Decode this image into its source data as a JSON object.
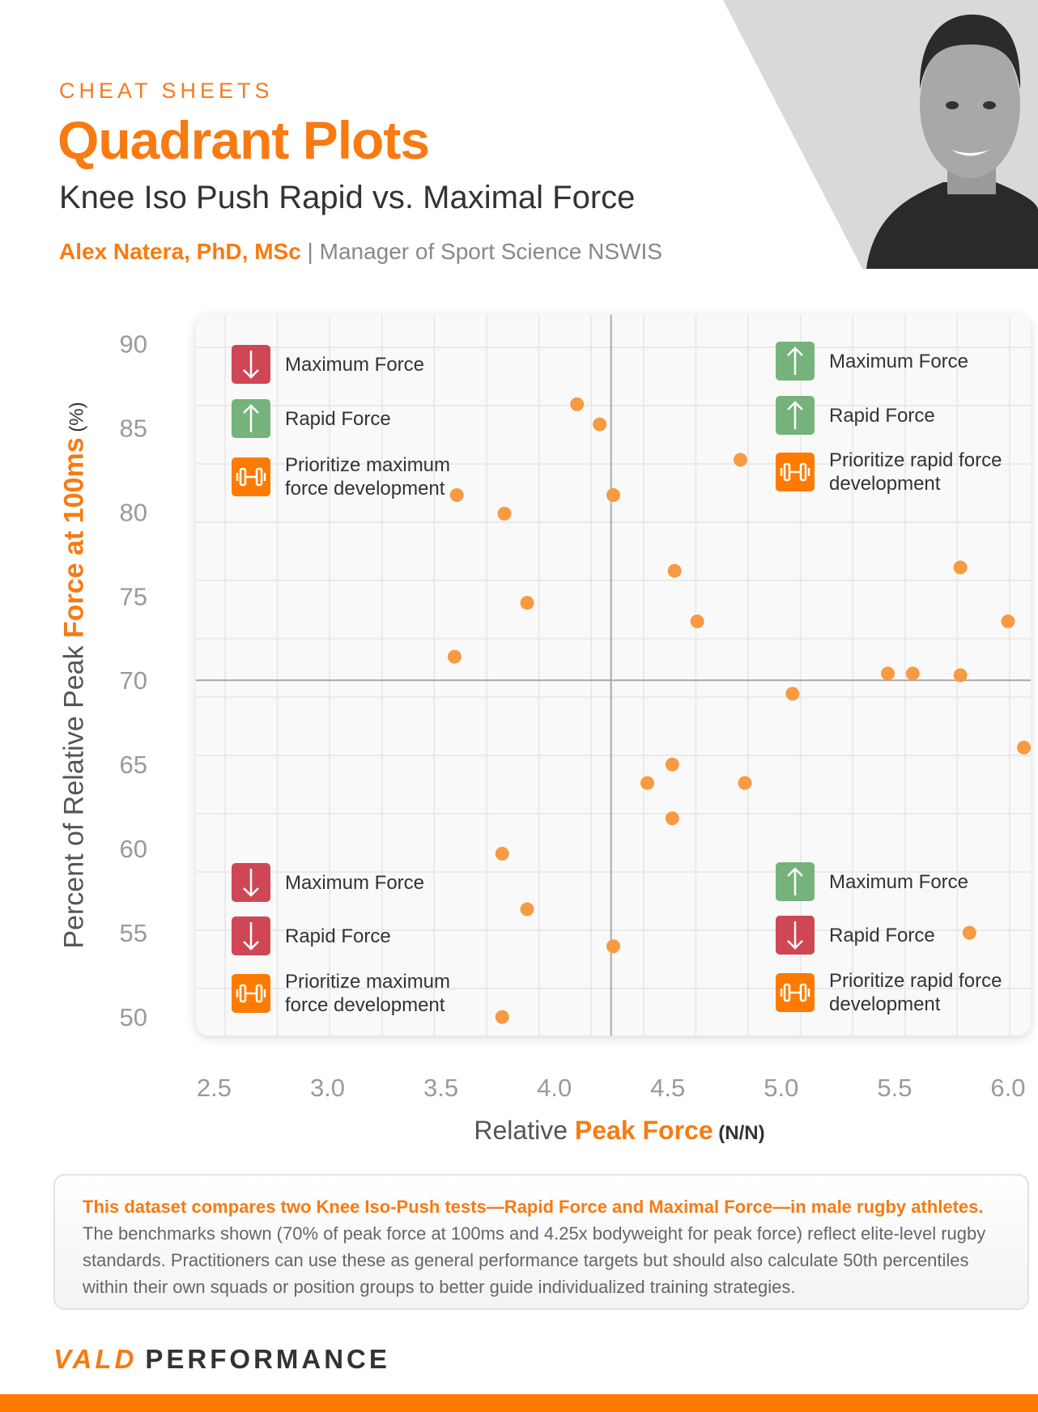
{
  "header": {
    "kicker": "CHEAT SHEETS",
    "title": "Quadrant Plots",
    "subtitle": "Knee Iso Push Rapid vs. Maximal Force",
    "author_name": "Alex Natera, PhD, MSc",
    "author_sep": " | ",
    "author_role": "Manager of Sport Science NSWIS"
  },
  "colors": {
    "accent": "#f77b12",
    "point": "#f79a42",
    "down": "#cf4755",
    "up": "#76b27c",
    "icon": "#ff7a00"
  },
  "legend": {
    "top_left": [
      {
        "icon": "arrow-down-icon",
        "color": "red",
        "label": "Maximum Force"
      },
      {
        "icon": "arrow-up-icon",
        "color": "green",
        "label": "Rapid Force"
      },
      {
        "icon": "dumbbell-icon",
        "color": "orange",
        "label": "Prioritize maximum force development"
      }
    ],
    "top_right": [
      {
        "icon": "arrow-up-icon",
        "color": "green",
        "label": "Maximum Force"
      },
      {
        "icon": "arrow-up-icon",
        "color": "green",
        "label": "Rapid Force"
      },
      {
        "icon": "dumbbell-icon",
        "color": "orange",
        "label": "Prioritize rapid force development"
      }
    ],
    "bottom_left": [
      {
        "icon": "arrow-down-icon",
        "color": "red",
        "label": "Maximum Force"
      },
      {
        "icon": "arrow-down-icon",
        "color": "red",
        "label": "Rapid Force"
      },
      {
        "icon": "dumbbell-icon",
        "color": "orange",
        "label": "Prioritize maximum force development"
      }
    ],
    "bottom_right": [
      {
        "icon": "arrow-up-icon",
        "color": "green",
        "label": "Maximum Force"
      },
      {
        "icon": "arrow-down-icon",
        "color": "red",
        "label": "Rapid Force"
      },
      {
        "icon": "dumbbell-icon",
        "color": "orange",
        "label": "Prioritize rapid force development"
      }
    ]
  },
  "chart_data": {
    "type": "scatter",
    "xlabel_parts": [
      "Relative ",
      "Peak Force",
      " (N/N)"
    ],
    "ylabel_parts": [
      "Percent of Relative Peak ",
      "Force at 100ms",
      " (%)"
    ],
    "xlim": [
      2.42,
      6.1
    ],
    "ylim": [
      48.9,
      91.7
    ],
    "xticks": [
      "2.5",
      "3.0",
      "3.5",
      "4.0",
      "4.5",
      "5.0",
      "5.5",
      "6.0"
    ],
    "yticks": [
      "50",
      "55",
      "60",
      "65",
      "70",
      "75",
      "80",
      "85",
      "90"
    ],
    "grid": true,
    "reference_lines": {
      "x": 4.25,
      "y": 70
    },
    "points": [
      [
        4.1,
        86.4
      ],
      [
        4.2,
        85.2
      ],
      [
        4.82,
        83.1
      ],
      [
        3.57,
        81.0
      ],
      [
        4.26,
        81.0
      ],
      [
        3.78,
        79.9
      ],
      [
        4.53,
        76.5
      ],
      [
        5.79,
        76.7
      ],
      [
        3.88,
        74.6
      ],
      [
        4.63,
        73.5
      ],
      [
        6.0,
        73.5
      ],
      [
        3.56,
        71.4
      ],
      [
        5.47,
        70.4
      ],
      [
        5.58,
        70.4
      ],
      [
        5.79,
        70.3
      ],
      [
        5.05,
        69.2
      ],
      [
        6.07,
        66.0
      ],
      [
        4.52,
        65.0
      ],
      [
        4.41,
        63.9
      ],
      [
        4.84,
        63.9
      ],
      [
        4.52,
        61.8
      ],
      [
        3.77,
        59.7
      ],
      [
        3.88,
        56.4
      ],
      [
        4.26,
        54.2
      ],
      [
        5.83,
        55.0
      ],
      [
        3.77,
        50.0
      ]
    ]
  },
  "note": {
    "lead": "This dataset compares two Knee Iso-Push tests—Rapid Force and Maximal Force—in male rugby athletes.",
    "body": "The benchmarks shown (70% of peak force at 100ms and 4.25x bodyweight for peak force) reflect elite-level rugby standards. Practitioners can use these as general performance targets but should also calculate 50th percentiles within their own squads or position groups to better guide individualized training strategies."
  },
  "brand": {
    "logo": "VALD",
    "word": "PERFORMANCE"
  }
}
